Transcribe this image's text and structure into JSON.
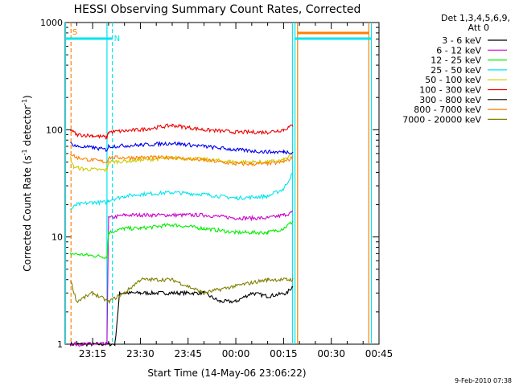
{
  "chart_data": {
    "type": "line",
    "title": "HESSI Observing Summary Count Rates, Corrected",
    "xlabel": "Start Time (14-May-06 23:06:22)",
    "ylabel_main": "Corrected Count Rate (s",
    "ylabel_sup1": "-1",
    "ylabel_mid": " detector",
    "ylabel_sup2": "-1",
    "ylabel_end": ")",
    "y_scale": "log",
    "ylim": [
      1,
      1000
    ],
    "xlim_min": [
      6.37,
      105.0
    ],
    "x_tick_labels": [
      "23:15",
      "23:30",
      "23:45",
      "00:00",
      "00:15",
      "00:30",
      "00:45"
    ],
    "x_tick_min": [
      15,
      30,
      45,
      60,
      75,
      90,
      105
    ],
    "y_tick_labels": [
      "1",
      "10",
      "100",
      "1000"
    ],
    "y_tick_values": [
      1,
      10,
      100,
      1000
    ],
    "legend_header": [
      "Det 1,3,4,5,6,9,",
      "Att 0"
    ],
    "series": [
      {
        "name": "3 - 6 keV",
        "color": "#000000",
        "points": [
          [
            8,
            1
          ],
          [
            15,
            1
          ],
          [
            22,
            1
          ],
          [
            23.5,
            3
          ],
          [
            30,
            3
          ],
          [
            40,
            3
          ],
          [
            50,
            3
          ],
          [
            55,
            2.5
          ],
          [
            60,
            2.5
          ],
          [
            65,
            3
          ],
          [
            70,
            2.8
          ],
          [
            76,
            3
          ],
          [
            78,
            3.5
          ]
        ]
      },
      {
        "name": "6 - 12 keV",
        "color": "#cc00cc",
        "points": [
          [
            8,
            1
          ],
          [
            19.5,
            1
          ],
          [
            20,
            15
          ],
          [
            25,
            16
          ],
          [
            30,
            16
          ],
          [
            40,
            16
          ],
          [
            50,
            16
          ],
          [
            60,
            15
          ],
          [
            70,
            15
          ],
          [
            75,
            16
          ],
          [
            78,
            17
          ]
        ]
      },
      {
        "name": "12 - 25 keV",
        "color": "#00ee00",
        "points": [
          [
            8,
            7
          ],
          [
            19.5,
            6.5
          ],
          [
            20,
            11
          ],
          [
            25,
            12
          ],
          [
            30,
            12
          ],
          [
            40,
            13
          ],
          [
            50,
            12
          ],
          [
            60,
            11
          ],
          [
            70,
            11
          ],
          [
            75,
            12
          ],
          [
            78,
            14
          ]
        ]
      },
      {
        "name": "25 - 50 keV",
        "color": "#00e5ee",
        "points": [
          [
            8,
            18
          ],
          [
            10,
            20
          ],
          [
            15,
            21
          ],
          [
            19.5,
            21
          ],
          [
            20,
            22
          ],
          [
            25,
            24
          ],
          [
            30,
            25
          ],
          [
            40,
            26
          ],
          [
            50,
            25
          ],
          [
            60,
            23
          ],
          [
            70,
            24
          ],
          [
            75,
            28
          ],
          [
            78,
            40
          ]
        ]
      },
      {
        "name": "50 - 100 keV",
        "color": "#cccc00",
        "points": [
          [
            8,
            55
          ],
          [
            9,
            45
          ],
          [
            12,
            43
          ],
          [
            19.5,
            42
          ],
          [
            20,
            50
          ],
          [
            30,
            52
          ],
          [
            40,
            55
          ],
          [
            50,
            53
          ],
          [
            60,
            50
          ],
          [
            70,
            50
          ],
          [
            75,
            52
          ],
          [
            78,
            60
          ]
        ]
      },
      {
        "name": "100 - 300 keV",
        "color": "#ee0000",
        "points": [
          [
            8,
            100
          ],
          [
            10,
            90
          ],
          [
            15,
            88
          ],
          [
            19.5,
            85
          ],
          [
            20,
            95
          ],
          [
            30,
            100
          ],
          [
            40,
            110
          ],
          [
            50,
            100
          ],
          [
            60,
            95
          ],
          [
            70,
            95
          ],
          [
            75,
            100
          ],
          [
            78,
            110
          ]
        ]
      },
      {
        "name": "300 - 800 keV",
        "color": "#000000",
        "points": []
      },
      {
        "name": "800 - 7000 keV",
        "color": "#ff7f00",
        "points": [
          [
            8,
            60
          ],
          [
            10,
            55
          ],
          [
            15,
            52
          ],
          [
            19.5,
            50
          ],
          [
            20,
            55
          ],
          [
            30,
            55
          ],
          [
            40,
            55
          ],
          [
            50,
            52
          ],
          [
            60,
            48
          ],
          [
            70,
            48
          ],
          [
            75,
            50
          ],
          [
            78,
            55
          ]
        ]
      },
      {
        "name": "7000 - 20000 keV",
        "color": "#808000",
        "points": [
          [
            8,
            4
          ],
          [
            10,
            2.5
          ],
          [
            15,
            3
          ],
          [
            20,
            2.5
          ],
          [
            25,
            3
          ],
          [
            30,
            4
          ],
          [
            40,
            4
          ],
          [
            50,
            3
          ],
          [
            60,
            3.5
          ],
          [
            70,
            4
          ],
          [
            76,
            4
          ],
          [
            78,
            4
          ]
        ]
      }
    ],
    "extra_series": [
      {
        "name": "blue",
        "color": "#0000ee",
        "points": [
          [
            8,
            75
          ],
          [
            10,
            70
          ],
          [
            15,
            68
          ],
          [
            19.5,
            65
          ],
          [
            20,
            70
          ],
          [
            30,
            72
          ],
          [
            40,
            75
          ],
          [
            50,
            70
          ],
          [
            60,
            65
          ],
          [
            70,
            62
          ],
          [
            75,
            62
          ],
          [
            78,
            62
          ]
        ]
      }
    ],
    "flag_labels": [
      "S",
      "N"
    ],
    "footer_date": "9-Feb-2010 07:38"
  }
}
